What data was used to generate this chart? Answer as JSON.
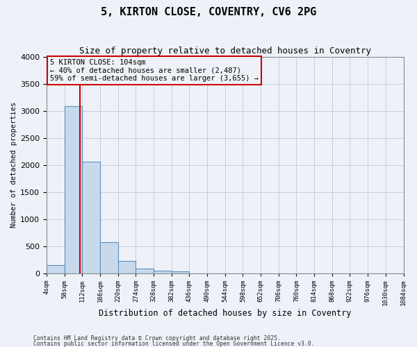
{
  "title1": "5, KIRTON CLOSE, COVENTRY, CV6 2PG",
  "title2": "Size of property relative to detached houses in Coventry",
  "xlabel": "Distribution of detached houses by size in Coventry",
  "ylabel": "Number of detached properties",
  "footer1": "Contains HM Land Registry data © Crown copyright and database right 2025.",
  "footer2": "Contains public sector information licensed under the Open Government Licence v3.0.",
  "annotation_line1": "5 KIRTON CLOSE: 104sqm",
  "annotation_line2": "← 40% of detached houses are smaller (2,487)",
  "annotation_line3": "59% of semi-detached houses are larger (3,655) →",
  "property_size": 104,
  "bar_bins": [
    4,
    58,
    112,
    166,
    220,
    274,
    328,
    382,
    436,
    490,
    544,
    598,
    652,
    706,
    760,
    814,
    868,
    922,
    976,
    1030,
    1084
  ],
  "bar_heights": [
    150,
    3080,
    2060,
    570,
    230,
    80,
    50,
    30,
    0,
    0,
    0,
    0,
    0,
    0,
    0,
    0,
    0,
    0,
    0,
    0
  ],
  "bar_color": "#c9d9ec",
  "bar_edge_color": "#5a8fc0",
  "vline_color": "#cc0000",
  "annotation_box_edge_color": "#cc0000",
  "background_color": "#eef2f8",
  "grid_color": "#c0c8d8",
  "ylim": [
    0,
    4000
  ],
  "yticks": [
    0,
    500,
    1000,
    1500,
    2000,
    2500,
    3000,
    3500,
    4000
  ]
}
